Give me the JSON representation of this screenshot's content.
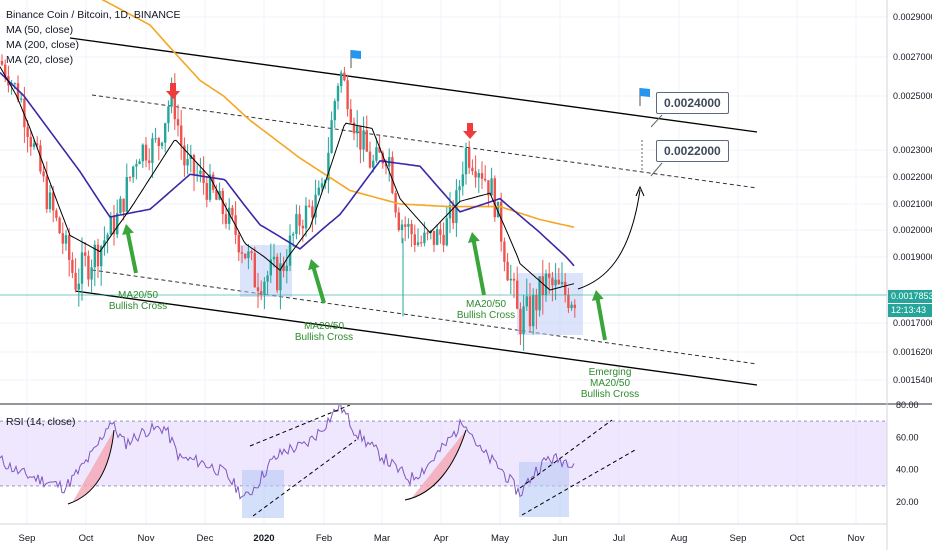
{
  "legend": {
    "title": "Binance Coin / Bitcoin, 1D, BINANCE",
    "ma50": "MA (50, close)",
    "ma200": "MA (200, close)",
    "ma20": "MA (20, close)",
    "rsi": "RSI (14, close)"
  },
  "annotations": {
    "cross1": "MA20/50\nBullish Cross",
    "cross2": "MA20/50\nBullish Cross",
    "cross3": "MA20/50\nBullish Cross",
    "emerging": "Emerging\nMA20/50\nBullish Cross",
    "target1": "0.0024000",
    "target2": "0.0022000"
  },
  "price_axis": {
    "current_price": "0.0017853",
    "countdown": "12:13:43"
  },
  "colors": {
    "ma20": "#000000",
    "ma50": "#3b27a8",
    "ma200": "#f5a623",
    "up": "#26a69a",
    "down": "#ef5350",
    "rsi_line": "#7e57c2",
    "rsi_band": "#e1d4fb",
    "green_arrow": "#3aa53a",
    "red_arrow": "#ef3b3b",
    "flag": "#2196f3",
    "price_line": "#26a69a",
    "box_fill": "#b7c9f5"
  },
  "chart_data": {
    "type": "candlestick",
    "title": "Binance Coin / Bitcoin, 1D, BINANCE",
    "x_tick_labels": [
      "Sep",
      "Oct",
      "Nov",
      "Dec",
      "2020",
      "Feb",
      "Mar",
      "Apr",
      "May",
      "Jun",
      "Jul",
      "Aug",
      "Sep",
      "Oct",
      "Nov"
    ],
    "y_tick_labels": [
      "0.0029000",
      "0.0027000",
      "0.0025000",
      "0.0023000",
      "0.0022000",
      "0.0021000",
      "0.0020000",
      "0.0019000",
      "0.0017000",
      "0.0016200",
      "0.0015400"
    ],
    "y_axis_values": [
      0.0029,
      0.0027,
      0.0025,
      0.0023,
      0.0022,
      0.0021,
      0.002,
      0.0019,
      0.0017,
      0.00162,
      0.00154
    ],
    "price_waypoints": [
      {
        "x": 0,
        "y": 0.00268
      },
      {
        "x": 20,
        "y": 0.0025
      },
      {
        "x": 45,
        "y": 0.00215
      },
      {
        "x": 75,
        "y": 0.00183
      },
      {
        "x": 100,
        "y": 0.00194
      },
      {
        "x": 118,
        "y": 0.00205
      },
      {
        "x": 138,
        "y": 0.0023
      },
      {
        "x": 158,
        "y": 0.00232
      },
      {
        "x": 172,
        "y": 0.00252
      },
      {
        "x": 185,
        "y": 0.00224
      },
      {
        "x": 205,
        "y": 0.00218
      },
      {
        "x": 232,
        "y": 0.00202
      },
      {
        "x": 255,
        "y": 0.00184
      },
      {
        "x": 280,
        "y": 0.00185
      },
      {
        "x": 300,
        "y": 0.00204
      },
      {
        "x": 322,
        "y": 0.00213
      },
      {
        "x": 340,
        "y": 0.00263
      },
      {
        "x": 356,
        "y": 0.00238
      },
      {
        "x": 372,
        "y": 0.00224
      },
      {
        "x": 388,
        "y": 0.0023
      },
      {
        "x": 398,
        "y": 0.00205
      },
      {
        "x": 420,
        "y": 0.00195
      },
      {
        "x": 440,
        "y": 0.00198
      },
      {
        "x": 455,
        "y": 0.00207
      },
      {
        "x": 465,
        "y": 0.0023
      },
      {
        "x": 480,
        "y": 0.00224
      },
      {
        "x": 493,
        "y": 0.00214
      },
      {
        "x": 505,
        "y": 0.00192
      },
      {
        "x": 518,
        "y": 0.00171
      },
      {
        "x": 530,
        "y": 0.00173
      },
      {
        "x": 545,
        "y": 0.00182
      },
      {
        "x": 562,
        "y": 0.00179
      },
      {
        "x": 575,
        "y": 0.001785
      }
    ],
    "ma200_waypoints": [
      {
        "x": 60,
        "y": 0.0031
      },
      {
        "x": 150,
        "y": 0.00286
      },
      {
        "x": 200,
        "y": 0.00258
      },
      {
        "x": 250,
        "y": 0.00241
      },
      {
        "x": 300,
        "y": 0.00227
      },
      {
        "x": 350,
        "y": 0.00215
      },
      {
        "x": 400,
        "y": 0.0021
      },
      {
        "x": 450,
        "y": 0.00209
      },
      {
        "x": 500,
        "y": 0.00209
      },
      {
        "x": 540,
        "y": 0.00204
      },
      {
        "x": 575,
        "y": 0.00201
      }
    ],
    "ma50_waypoints": [
      {
        "x": 0,
        "y": 0.00262
      },
      {
        "x": 40,
        "y": 0.00242
      },
      {
        "x": 80,
        "y": 0.00222
      },
      {
        "x": 110,
        "y": 0.00205
      },
      {
        "x": 150,
        "y": 0.00208
      },
      {
        "x": 190,
        "y": 0.00221
      },
      {
        "x": 225,
        "y": 0.00219
      },
      {
        "x": 260,
        "y": 0.00202
      },
      {
        "x": 300,
        "y": 0.00193
      },
      {
        "x": 340,
        "y": 0.00206
      },
      {
        "x": 380,
        "y": 0.00226
      },
      {
        "x": 420,
        "y": 0.00224
      },
      {
        "x": 460,
        "y": 0.00207
      },
      {
        "x": 500,
        "y": 0.00212
      },
      {
        "x": 540,
        "y": 0.00199
      },
      {
        "x": 575,
        "y": 0.00187
      }
    ],
    "ma20_waypoints": [
      {
        "x": 0,
        "y": 0.00265
      },
      {
        "x": 30,
        "y": 0.00238
      },
      {
        "x": 70,
        "y": 0.00198
      },
      {
        "x": 100,
        "y": 0.00192
      },
      {
        "x": 130,
        "y": 0.00208
      },
      {
        "x": 175,
        "y": 0.00234
      },
      {
        "x": 210,
        "y": 0.0022
      },
      {
        "x": 245,
        "y": 0.00195
      },
      {
        "x": 280,
        "y": 0.00186
      },
      {
        "x": 310,
        "y": 0.00201
      },
      {
        "x": 345,
        "y": 0.0024
      },
      {
        "x": 372,
        "y": 0.00238
      },
      {
        "x": 400,
        "y": 0.00212
      },
      {
        "x": 430,
        "y": 0.00199
      },
      {
        "x": 460,
        "y": 0.00211
      },
      {
        "x": 490,
        "y": 0.00214
      },
      {
        "x": 520,
        "y": 0.00188
      },
      {
        "x": 550,
        "y": 0.0018
      },
      {
        "x": 575,
        "y": 0.00182
      }
    ],
    "rsi_y_tick_labels": [
      "80.00",
      "60.00",
      "40.00",
      "20.00"
    ],
    "rsi_y_axis_values": [
      80,
      60,
      40,
      20
    ],
    "rsi_waypoints": [
      {
        "x": 0,
        "y": 46
      },
      {
        "x": 20,
        "y": 38
      },
      {
        "x": 45,
        "y": 33
      },
      {
        "x": 65,
        "y": 29
      },
      {
        "x": 80,
        "y": 40
      },
      {
        "x": 95,
        "y": 52
      },
      {
        "x": 110,
        "y": 70
      },
      {
        "x": 125,
        "y": 56
      },
      {
        "x": 145,
        "y": 64
      },
      {
        "x": 165,
        "y": 66
      },
      {
        "x": 180,
        "y": 47
      },
      {
        "x": 200,
        "y": 45
      },
      {
        "x": 225,
        "y": 38
      },
      {
        "x": 245,
        "y": 22
      },
      {
        "x": 258,
        "y": 32
      },
      {
        "x": 270,
        "y": 44
      },
      {
        "x": 285,
        "y": 52
      },
      {
        "x": 305,
        "y": 55
      },
      {
        "x": 320,
        "y": 64
      },
      {
        "x": 340,
        "y": 80
      },
      {
        "x": 355,
        "y": 64
      },
      {
        "x": 375,
        "y": 52
      },
      {
        "x": 390,
        "y": 44
      },
      {
        "x": 410,
        "y": 34
      },
      {
        "x": 425,
        "y": 41
      },
      {
        "x": 445,
        "y": 55
      },
      {
        "x": 465,
        "y": 71
      },
      {
        "x": 480,
        "y": 52
      },
      {
        "x": 500,
        "y": 41
      },
      {
        "x": 520,
        "y": 25
      },
      {
        "x": 535,
        "y": 39
      },
      {
        "x": 548,
        "y": 47
      },
      {
        "x": 560,
        "y": 46
      },
      {
        "x": 575,
        "y": 45
      }
    ],
    "rsi_band": [
      30,
      70
    ]
  }
}
